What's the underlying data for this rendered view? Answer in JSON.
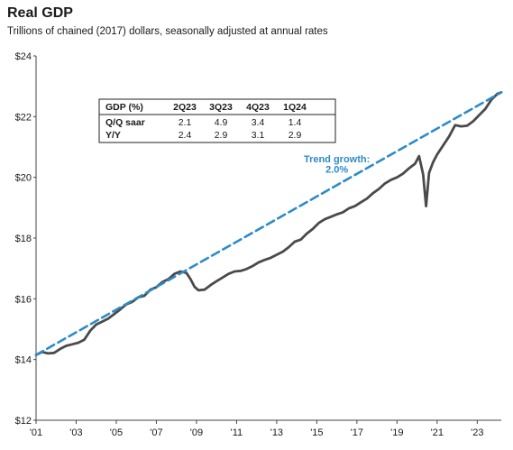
{
  "chart_data": {
    "type": "line",
    "title": "Real GDP",
    "subtitle": "Trillions of chained (2017) dollars, seasonally adjusted at annual rates",
    "xlim": [
      2001,
      2024.2
    ],
    "ylim": [
      12,
      24
    ],
    "y_ticks": [
      12,
      14,
      16,
      18,
      20,
      22,
      24
    ],
    "y_tick_labels": [
      "$12",
      "$14",
      "$16",
      "$18",
      "$20",
      "$22",
      "$24"
    ],
    "x_ticks": [
      2001,
      2003,
      2005,
      2007,
      2009,
      2011,
      2013,
      2015,
      2017,
      2019,
      2021,
      2023
    ],
    "x_tick_labels": [
      "'01",
      "'03",
      "'05",
      "'07",
      "'09",
      "'11",
      "'13",
      "'15",
      "'17",
      "'19",
      "'21",
      "'23"
    ],
    "grid": false,
    "series": [
      {
        "name": "",
        "color": "#4a4a4a",
        "points": [
          [
            2001.0,
            14.15
          ],
          [
            2001.3,
            14.25
          ],
          [
            2001.6,
            14.2
          ],
          [
            2001.9,
            14.22
          ],
          [
            2002.2,
            14.35
          ],
          [
            2002.5,
            14.45
          ],
          [
            2002.8,
            14.5
          ],
          [
            2003.1,
            14.55
          ],
          [
            2003.4,
            14.65
          ],
          [
            2003.7,
            14.95
          ],
          [
            2004.0,
            15.15
          ],
          [
            2004.3,
            15.25
          ],
          [
            2004.6,
            15.35
          ],
          [
            2004.9,
            15.5
          ],
          [
            2005.2,
            15.65
          ],
          [
            2005.5,
            15.82
          ],
          [
            2005.8,
            15.9
          ],
          [
            2006.1,
            16.05
          ],
          [
            2006.4,
            16.1
          ],
          [
            2006.7,
            16.3
          ],
          [
            2007.0,
            16.38
          ],
          [
            2007.3,
            16.55
          ],
          [
            2007.6,
            16.65
          ],
          [
            2007.9,
            16.82
          ],
          [
            2008.2,
            16.9
          ],
          [
            2008.5,
            16.85
          ],
          [
            2008.7,
            16.65
          ],
          [
            2008.9,
            16.4
          ],
          [
            2009.1,
            16.28
          ],
          [
            2009.4,
            16.3
          ],
          [
            2009.7,
            16.45
          ],
          [
            2010.0,
            16.58
          ],
          [
            2010.3,
            16.7
          ],
          [
            2010.6,
            16.82
          ],
          [
            2010.9,
            16.9
          ],
          [
            2011.2,
            16.92
          ],
          [
            2011.5,
            16.98
          ],
          [
            2011.8,
            17.08
          ],
          [
            2012.1,
            17.2
          ],
          [
            2012.4,
            17.28
          ],
          [
            2012.7,
            17.35
          ],
          [
            2013.0,
            17.45
          ],
          [
            2013.3,
            17.55
          ],
          [
            2013.6,
            17.7
          ],
          [
            2013.9,
            17.88
          ],
          [
            2014.2,
            17.95
          ],
          [
            2014.5,
            18.15
          ],
          [
            2014.8,
            18.3
          ],
          [
            2015.1,
            18.5
          ],
          [
            2015.4,
            18.62
          ],
          [
            2015.7,
            18.7
          ],
          [
            2016.0,
            18.78
          ],
          [
            2016.3,
            18.85
          ],
          [
            2016.6,
            18.98
          ],
          [
            2016.9,
            19.05
          ],
          [
            2017.2,
            19.18
          ],
          [
            2017.5,
            19.3
          ],
          [
            2017.8,
            19.48
          ],
          [
            2018.1,
            19.62
          ],
          [
            2018.4,
            19.8
          ],
          [
            2018.7,
            19.92
          ],
          [
            2019.0,
            20.0
          ],
          [
            2019.3,
            20.12
          ],
          [
            2019.6,
            20.3
          ],
          [
            2019.9,
            20.45
          ],
          [
            2020.1,
            20.7
          ],
          [
            2020.3,
            20.1
          ],
          [
            2020.45,
            19.05
          ],
          [
            2020.6,
            20.15
          ],
          [
            2020.8,
            20.5
          ],
          [
            2021.0,
            20.75
          ],
          [
            2021.3,
            21.05
          ],
          [
            2021.6,
            21.35
          ],
          [
            2021.9,
            21.72
          ],
          [
            2022.2,
            21.68
          ],
          [
            2022.5,
            21.7
          ],
          [
            2022.8,
            21.85
          ],
          [
            2023.1,
            22.05
          ],
          [
            2023.4,
            22.25
          ],
          [
            2023.7,
            22.55
          ],
          [
            2024.0,
            22.75
          ],
          [
            2024.2,
            22.8
          ]
        ]
      },
      {
        "name": "Trend growth: 2.0%",
        "color": "#2d8bc9",
        "dashed": true,
        "points": [
          [
            2001.0,
            14.15
          ],
          [
            2024.2,
            22.8
          ]
        ]
      }
    ],
    "annotations": [
      {
        "text": "Trend growth:",
        "x": 2016.0,
        "y": 20.5
      },
      {
        "text": "2.0%",
        "x": 2016.0,
        "y": 20.15
      }
    ],
    "table": {
      "header": [
        "GDP (%)",
        "2Q23",
        "3Q23",
        "4Q23",
        "1Q24"
      ],
      "rows": [
        [
          "Q/Q saar",
          "2.1",
          "4.9",
          "3.4",
          "1.4"
        ],
        [
          "Y/Y",
          "2.4",
          "2.9",
          "3.1",
          "2.9"
        ]
      ]
    }
  }
}
